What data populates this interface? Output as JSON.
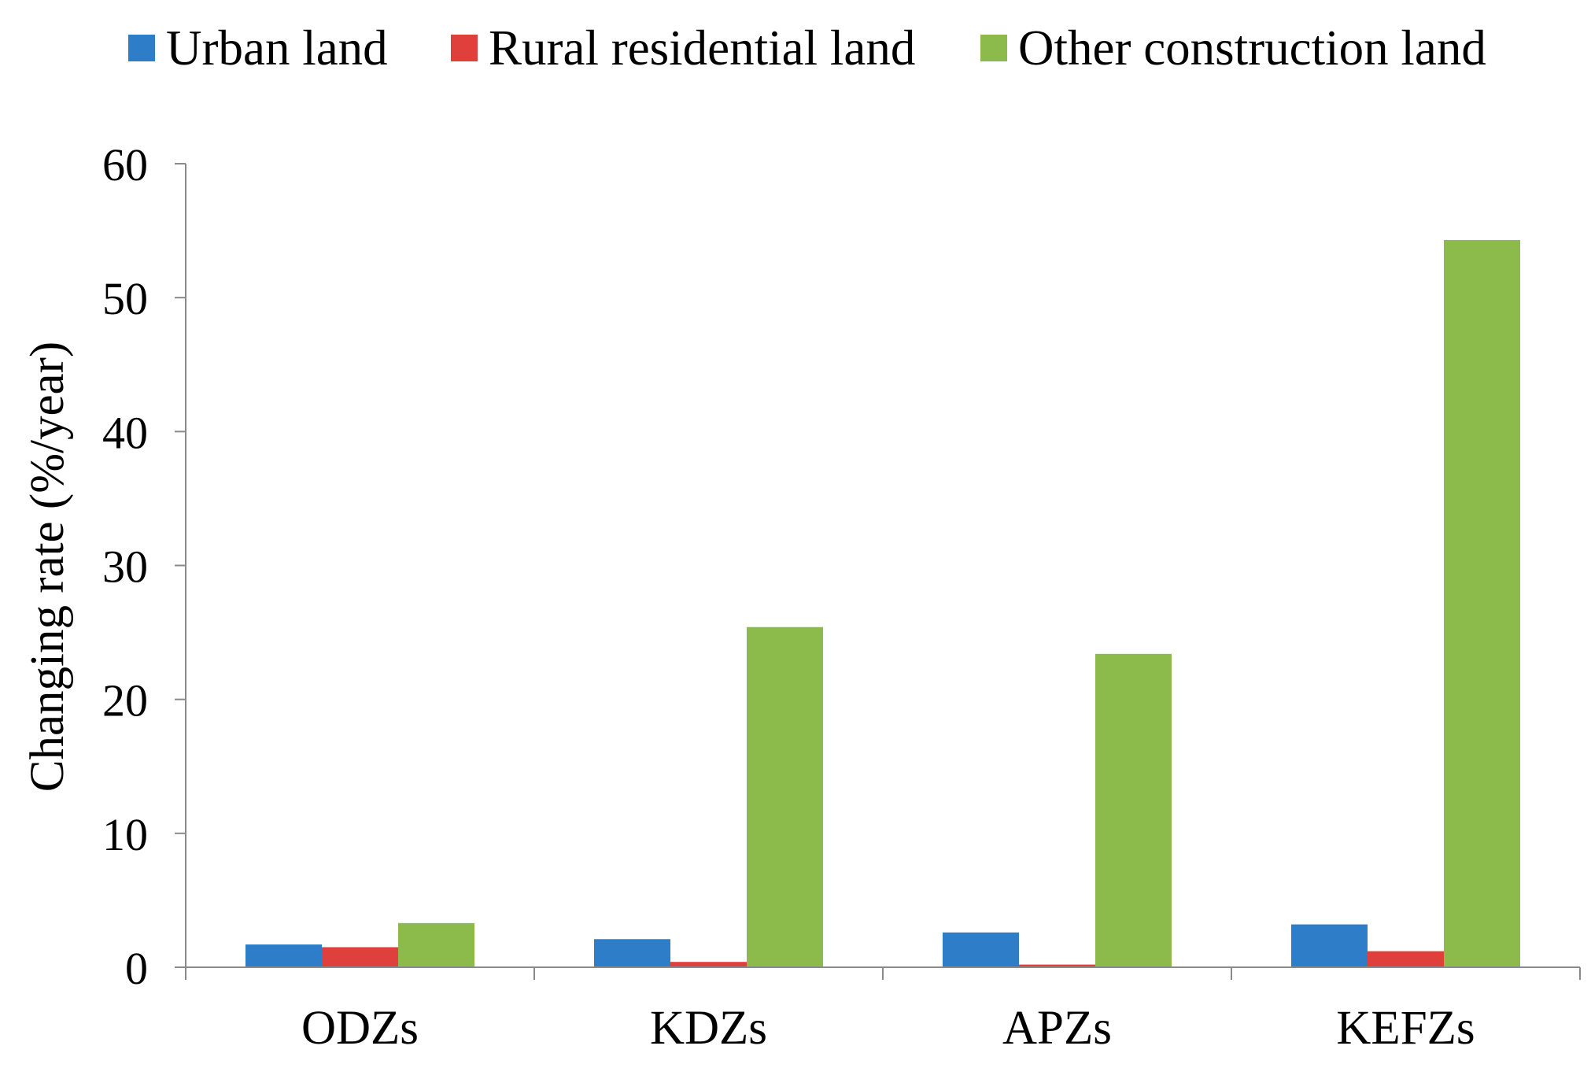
{
  "chart_data": {
    "type": "bar",
    "title": "",
    "xlabel": "",
    "ylabel": "Changing rate (%/year)",
    "categories": [
      "ODZs",
      "KDZs",
      "APZs",
      "KEFZs"
    ],
    "series": [
      {
        "name": "Urban land",
        "color": "#2E7DC9",
        "values": [
          1.7,
          2.1,
          2.6,
          3.2
        ]
      },
      {
        "name": "Rural residential land",
        "color": "#E0403B",
        "values": [
          1.5,
          0.4,
          0.2,
          1.2
        ]
      },
      {
        "name": "Other construction land",
        "color": "#8CBA4B",
        "values": [
          3.3,
          25.4,
          23.4,
          54.3
        ]
      }
    ],
    "ylim": [
      0,
      60
    ],
    "yticks": [
      "0",
      "10",
      "20",
      "30",
      "40",
      "50",
      "60"
    ],
    "grid": false,
    "legend_position": "top"
  }
}
